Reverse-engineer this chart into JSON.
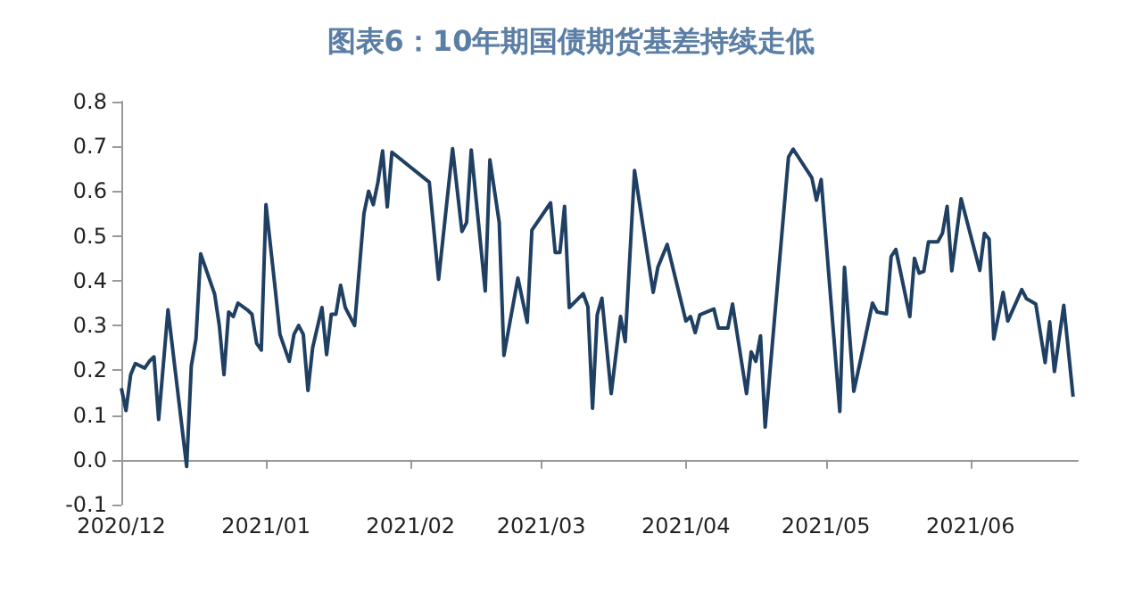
{
  "chart_data": {
    "type": "line",
    "title": "图表6：10年期国债期货基差持续走低",
    "x": [
      "2020-12-01",
      "2020-12-02",
      "2020-12-03",
      "2020-12-04",
      "2020-12-06",
      "2020-12-07",
      "2020-12-08",
      "2020-12-09",
      "2020-12-11",
      "2020-12-15",
      "2020-12-16",
      "2020-12-17",
      "2020-12-18",
      "2020-12-21",
      "2020-12-22",
      "2020-12-23",
      "2020-12-24",
      "2020-12-25",
      "2020-12-26",
      "2020-12-28",
      "2020-12-29",
      "2020-12-30",
      "2020-12-31",
      "2021-01-01",
      "2021-01-03",
      "2021-01-04",
      "2021-01-06",
      "2021-01-07",
      "2021-01-08",
      "2021-01-09",
      "2021-01-10",
      "2021-01-11",
      "2021-01-13",
      "2021-01-14",
      "2021-01-15",
      "2021-01-16",
      "2021-01-17",
      "2021-01-18",
      "2021-01-20",
      "2021-01-22",
      "2021-01-23",
      "2021-01-24",
      "2021-01-25",
      "2021-01-26",
      "2021-01-27",
      "2021-01-28",
      "2021-02-05",
      "2021-02-07",
      "2021-02-10",
      "2021-02-12",
      "2021-02-13",
      "2021-02-14",
      "2021-02-17",
      "2021-02-18",
      "2021-02-20",
      "2021-02-21",
      "2021-02-24",
      "2021-02-26",
      "2021-02-27",
      "2021-03-03",
      "2021-03-04",
      "2021-03-05",
      "2021-03-06",
      "2021-03-07",
      "2021-03-10",
      "2021-03-11",
      "2021-03-12",
      "2021-03-13",
      "2021-03-14",
      "2021-03-16",
      "2021-03-18",
      "2021-03-19",
      "2021-03-21",
      "2021-03-25",
      "2021-03-26",
      "2021-03-28",
      "2021-04-01",
      "2021-04-02",
      "2021-04-03",
      "2021-04-04",
      "2021-04-07",
      "2021-04-08",
      "2021-04-10",
      "2021-04-11",
      "2021-04-14",
      "2021-04-15",
      "2021-04-16",
      "2021-04-17",
      "2021-04-18",
      "2021-04-23",
      "2021-04-24",
      "2021-04-28",
      "2021-04-29",
      "2021-04-30",
      "2021-05-04",
      "2021-05-05",
      "2021-05-07",
      "2021-05-09",
      "2021-05-11",
      "2021-05-12",
      "2021-05-14",
      "2021-05-15",
      "2021-05-16",
      "2021-05-19",
      "2021-05-20",
      "2021-05-21",
      "2021-05-22",
      "2021-05-23",
      "2021-05-25",
      "2021-05-26",
      "2021-05-27",
      "2021-05-28",
      "2021-05-30",
      "2021-06-03",
      "2021-06-04",
      "2021-06-05",
      "2021-06-06",
      "2021-06-08",
      "2021-06-09",
      "2021-06-12",
      "2021-06-13",
      "2021-06-15",
      "2021-06-17",
      "2021-06-18",
      "2021-06-19",
      "2021-06-21",
      "2021-06-23"
    ],
    "series": [
      {
        "color": "#1f3f63",
        "values": [
          0.16,
          0.11,
          0.19,
          0.215,
          0.205,
          0.22,
          0.23,
          0.09,
          0.335,
          -0.015,
          0.21,
          0.27,
          0.46,
          0.37,
          0.3,
          0.19,
          0.33,
          0.32,
          0.35,
          0.335,
          0.325,
          0.26,
          0.245,
          0.57,
          0.38,
          0.28,
          0.22,
          0.28,
          0.3,
          0.28,
          0.155,
          0.25,
          0.34,
          0.235,
          0.325,
          0.325,
          0.39,
          0.34,
          0.3,
          0.55,
          0.6,
          0.57,
          0.62,
          0.69,
          0.565,
          0.687,
          0.62,
          0.403,
          0.695,
          0.51,
          0.53,
          0.692,
          0.377,
          0.67,
          0.53,
          0.233,
          0.406,
          0.307,
          0.513,
          0.574,
          0.463,
          0.463,
          0.566,
          0.34,
          0.371,
          0.342,
          0.115,
          0.324,
          0.361,
          0.148,
          0.32,
          0.264,
          0.646,
          0.374,
          0.43,
          0.481,
          0.31,
          0.32,
          0.284,
          0.324,
          0.337,
          0.294,
          0.294,
          0.348,
          0.148,
          0.241,
          0.22,
          0.277,
          0.073,
          0.676,
          0.694,
          0.63,
          0.58,
          0.626,
          0.108,
          0.43,
          0.153,
          0.25,
          0.35,
          0.33,
          0.326,
          0.454,
          0.47,
          0.32,
          0.45,
          0.417,
          0.421,
          0.487,
          0.487,
          0.506,
          0.566,
          0.422,
          0.583,
          0.423,
          0.506,
          0.493,
          0.27,
          0.374,
          0.31,
          0.38,
          0.36,
          0.348,
          0.217,
          0.308,
          0.197,
          0.345,
          0.141
        ]
      }
    ],
    "xlim": [
      "2020-12-01",
      "2021-06-24"
    ],
    "xticks": [
      {
        "value": "2020-12-01",
        "label": "2020/12"
      },
      {
        "value": "2021-01-01",
        "label": "2021/01"
      },
      {
        "value": "2021-02-01",
        "label": "2021/02"
      },
      {
        "value": "2021-03-01",
        "label": "2021/03"
      },
      {
        "value": "2021-04-01",
        "label": "2021/04"
      },
      {
        "value": "2021-05-01",
        "label": "2021/05"
      },
      {
        "value": "2021-06-01",
        "label": "2021/06"
      }
    ],
    "ylim": [
      -0.1,
      0.8
    ],
    "yticks": [
      -0.1,
      {
        "value": 0,
        "label": "0.0"
      },
      0.1,
      0.2,
      0.3,
      0.4,
      0.5,
      0.6,
      0.7,
      0.8
    ],
    "grid": false,
    "marker": "none",
    "line_style": "solid"
  }
}
